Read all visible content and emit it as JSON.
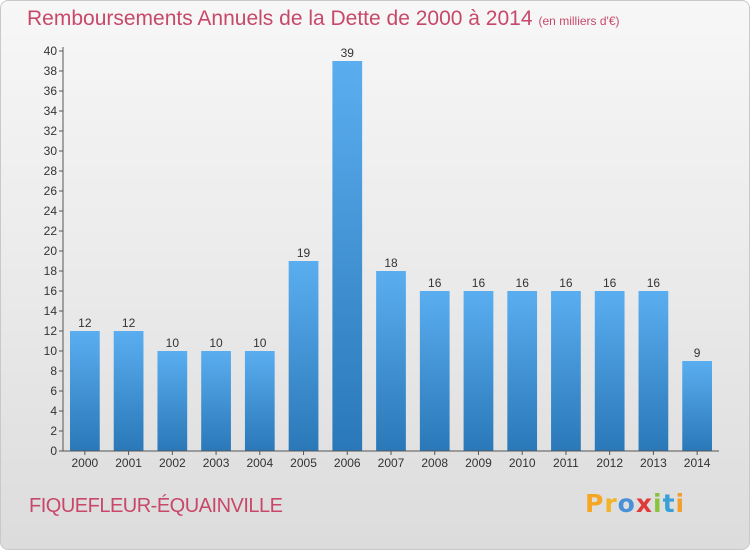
{
  "title": "Remboursements Annuels de la Dette de 2000 à 2014",
  "unit": "(en milliers d'€)",
  "commune": "FIQUEFLEUR-ÉQUAINVILLE",
  "brand": {
    "letters": [
      "P",
      "r",
      "o",
      "x",
      "i",
      "t",
      "i"
    ],
    "colors": [
      "#f5a623",
      "#f0b428",
      "#4a90d9",
      "#e03b3b",
      "#8ac43f",
      "#3aa0d8",
      "#f0a030"
    ]
  },
  "chart_data": {
    "type": "bar",
    "categories": [
      "2000",
      "2001",
      "2002",
      "2003",
      "2004",
      "2005",
      "2006",
      "2007",
      "2008",
      "2009",
      "2010",
      "2011",
      "2012",
      "2013",
      "2014"
    ],
    "values": [
      12,
      12,
      10,
      10,
      10,
      19,
      39,
      18,
      16,
      16,
      16,
      16,
      16,
      16,
      9
    ],
    "ylim": [
      0,
      40
    ],
    "ytick_step": 2,
    "grid": false,
    "bar_color_top": "#5aaef0",
    "bar_color_bottom": "#2a78b8",
    "title_color": "#c8486a"
  }
}
